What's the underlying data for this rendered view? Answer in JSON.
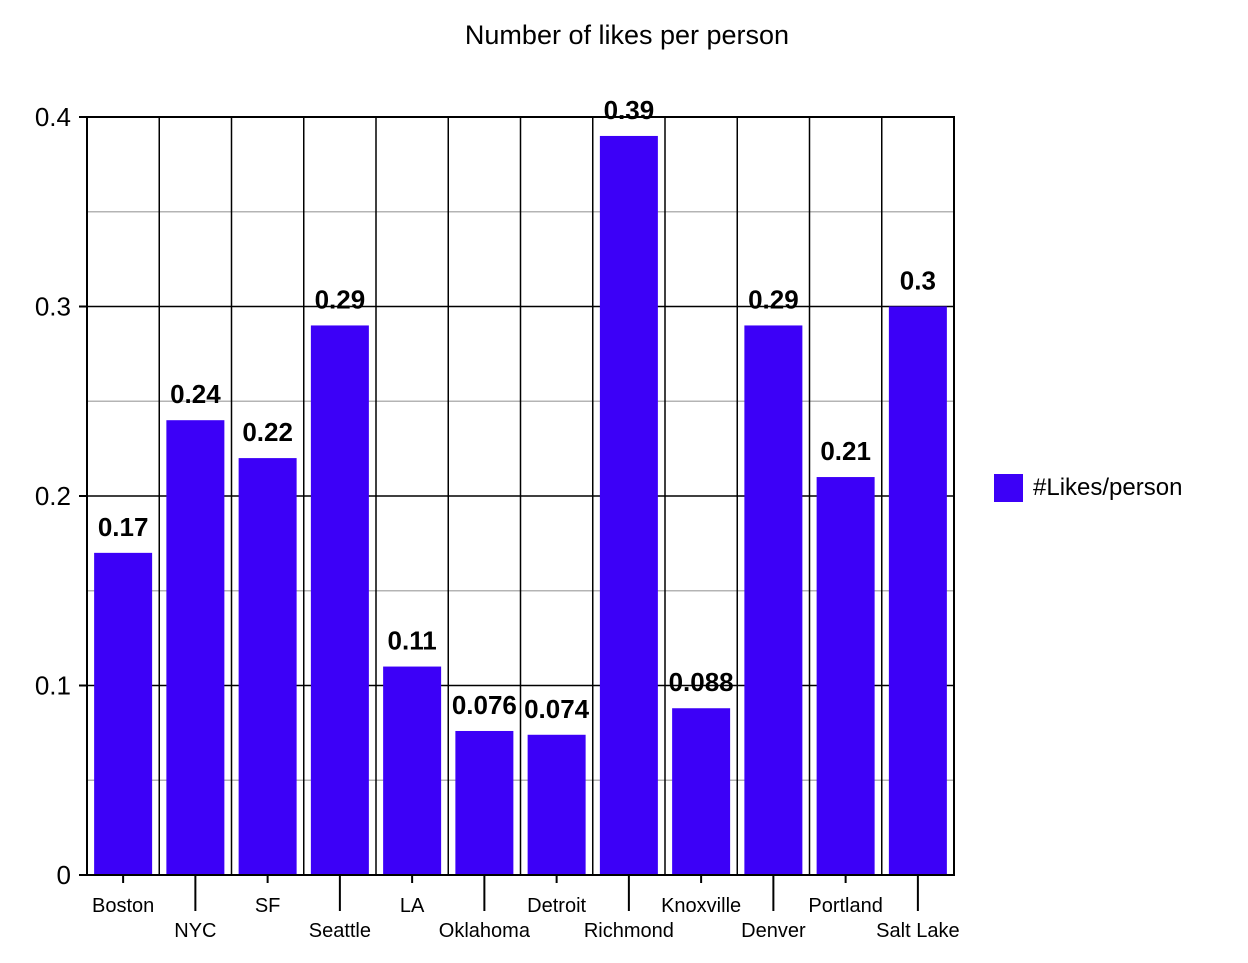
{
  "chart_data": {
    "type": "bar",
    "title": "Number of likes per person",
    "xlabel": "",
    "ylabel": "",
    "categories": [
      "Boston",
      "NYC",
      "SF",
      "Seattle",
      "LA",
      "Oklahoma",
      "Detroit",
      "Richmond",
      "Knoxville",
      "Denver",
      "Portland",
      "Salt Lake"
    ],
    "series": [
      {
        "name": "#Likes/person",
        "values": [
          0.17,
          0.24,
          0.22,
          0.29,
          0.11,
          0.076,
          0.074,
          0.39,
          0.088,
          0.29,
          0.21,
          0.3
        ],
        "labels": [
          "0.17",
          "0.24",
          "0.22",
          "0.29",
          "0.11",
          "0.076",
          "0.074",
          "0.39",
          "0.088",
          "0.29",
          "0.21",
          "0.3"
        ]
      }
    ],
    "ylim": [
      0,
      0.4
    ],
    "yticks": [
      "0",
      "0.1",
      "0.2",
      "0.3",
      "0.4"
    ],
    "grid": true,
    "legend_position": "right",
    "bar_color": "#3c00f7"
  }
}
